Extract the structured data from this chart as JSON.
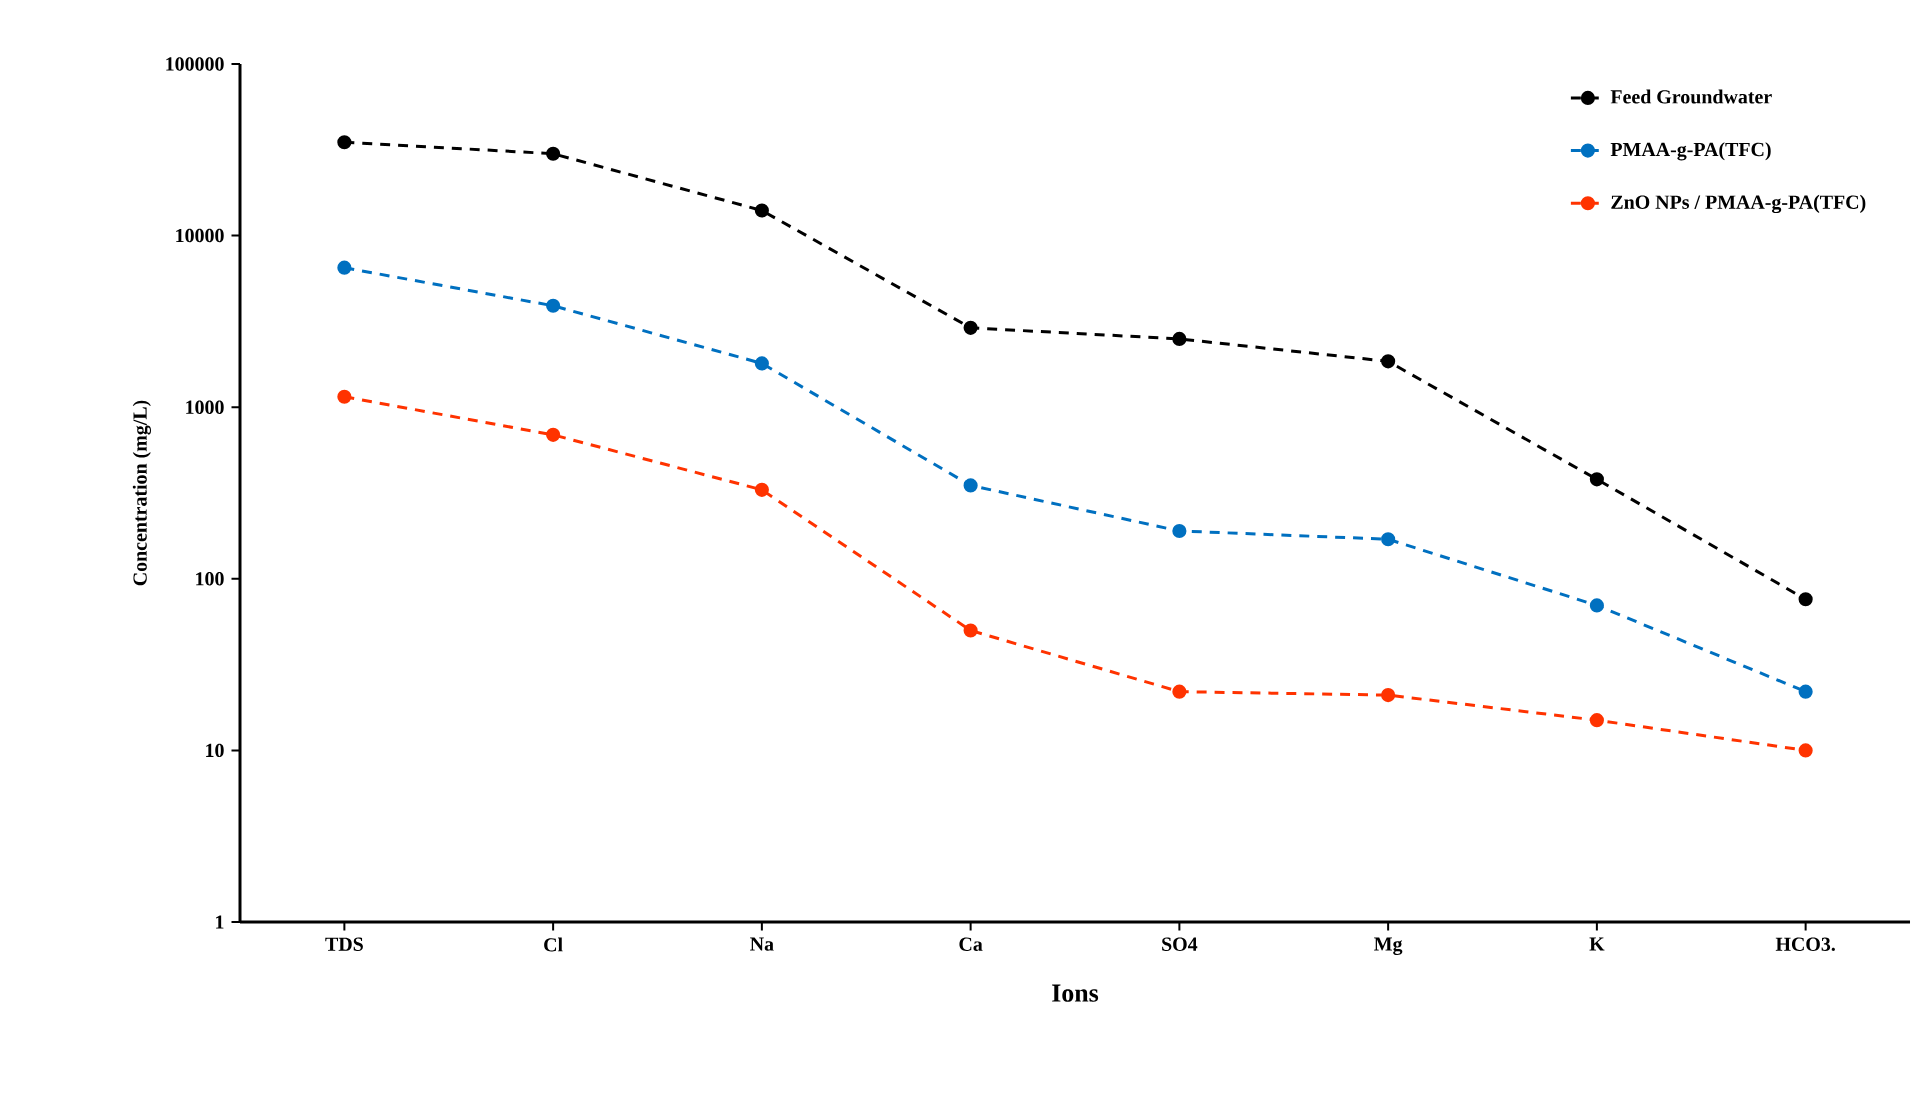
{
  "chart_data": {
    "type": "line",
    "xlabel": "Ions",
    "ylabel": "Concentration  (mg/L)",
    "categories": [
      "TDS",
      "Cl",
      "Na",
      "Ca",
      "SO4",
      "Mg",
      "K",
      "HCO3."
    ],
    "series": [
      {
        "name": "Feed Groundwater",
        "color": "#000000",
        "values": [
          35000,
          30000,
          14000,
          2900,
          2500,
          1850,
          380,
          76
        ]
      },
      {
        "name": "PMAA-g-PA(TFC)",
        "color": "#0070c0",
        "values": [
          6500,
          3900,
          1800,
          350,
          190,
          170,
          70,
          22
        ]
      },
      {
        "name": "ZnO NPs / PMAA-g-PA(TFC)",
        "color": "#ff3300",
        "values": [
          1150,
          690,
          330,
          50,
          22,
          21,
          15,
          10
        ]
      }
    ],
    "log": "y",
    "ylim": [
      1,
      100000
    ],
    "yticks": [
      1,
      10,
      100,
      1000,
      10000,
      100000
    ],
    "grid": false,
    "legend": "top right",
    "marker": "circle",
    "line_style": "dashed"
  }
}
